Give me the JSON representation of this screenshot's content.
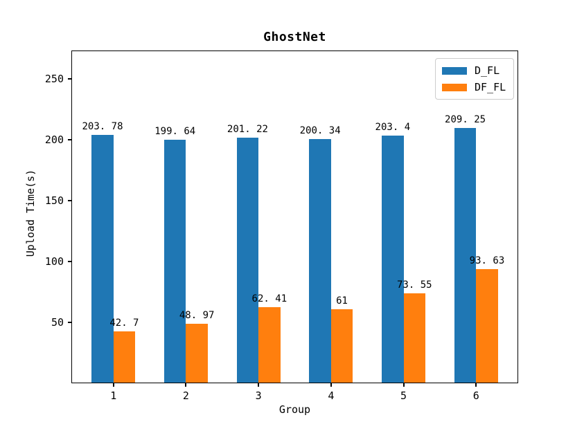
{
  "chart_data": {
    "type": "bar",
    "title": "GhostNet",
    "xlabel": "Group",
    "ylabel": "Upload Time(s)",
    "categories": [
      "1",
      "2",
      "3",
      "4",
      "5",
      "6"
    ],
    "series": [
      {
        "name": "D_FL",
        "color": "#1f77b4",
        "values": [
          203.78,
          199.64,
          201.22,
          200.34,
          203.4,
          209.25
        ],
        "bar_labels": [
          "203. 78",
          "199. 64",
          "201. 22",
          "200. 34",
          "203. 4",
          "209. 25"
        ]
      },
      {
        "name": "DF_FL",
        "color": "#ff7f0e",
        "values": [
          42.7,
          48.97,
          62.41,
          61,
          73.55,
          93.63
        ],
        "bar_labels": [
          "42. 7",
          "48. 97",
          "62. 41",
          "61",
          "73. 55",
          "93. 63"
        ]
      }
    ],
    "yticks": [
      50,
      100,
      150,
      200,
      250
    ],
    "ylim": [
      0,
      273
    ],
    "xlim": [
      0.42,
      6.58
    ],
    "bar_width": 0.3,
    "grid": false,
    "legend_position": "upper-right",
    "axis_color": "#000000",
    "background_color": "#ffffff"
  }
}
